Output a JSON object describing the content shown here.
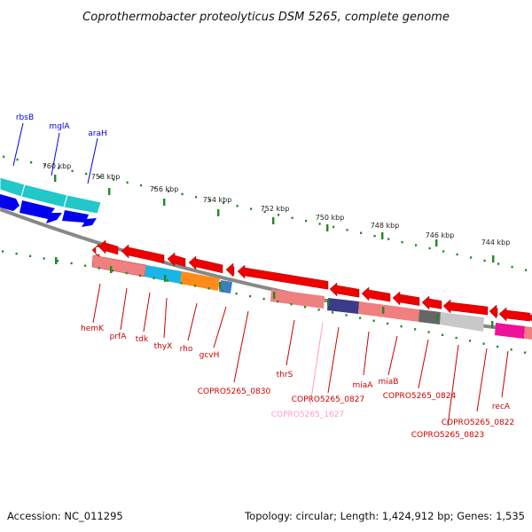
{
  "title": "Coprothermobacter proteolyticus DSM 5265, complete genome",
  "accession": "Accession: NC_011295",
  "summary": "Topology: circular; Length: 1,424,912 bp; Genes: 1,535",
  "colors": {
    "forward_cds": "#0000ee",
    "forward_blocks": "#22c7c7",
    "reverse_cds": "#ee0000",
    "reverse_label": "#cc0000",
    "highlight_label": "#ff99cc",
    "tick": "#228822",
    "backbone": "#888888"
  },
  "tick_labels": [
    "760 kbp",
    "758 kbp",
    "756 kbp",
    "754 kbp",
    "752 kbp",
    "750 kbp",
    "748 kbp",
    "746 kbp",
    "744 kbp"
  ],
  "forward_genes": [
    "rbsB",
    "mglA",
    "araH"
  ],
  "reverse_genes": [
    "hemK",
    "prfA",
    "tdk",
    "thyX",
    "rho",
    "gcvH",
    "COPRO5265_0830",
    "thrS",
    "COPRO5265_1627",
    "COPRO5265_0827",
    "miaA",
    "miaB",
    "COPRO5265_0824",
    "COPRO5265_0822",
    "COPRO5265_0823",
    "recA"
  ]
}
